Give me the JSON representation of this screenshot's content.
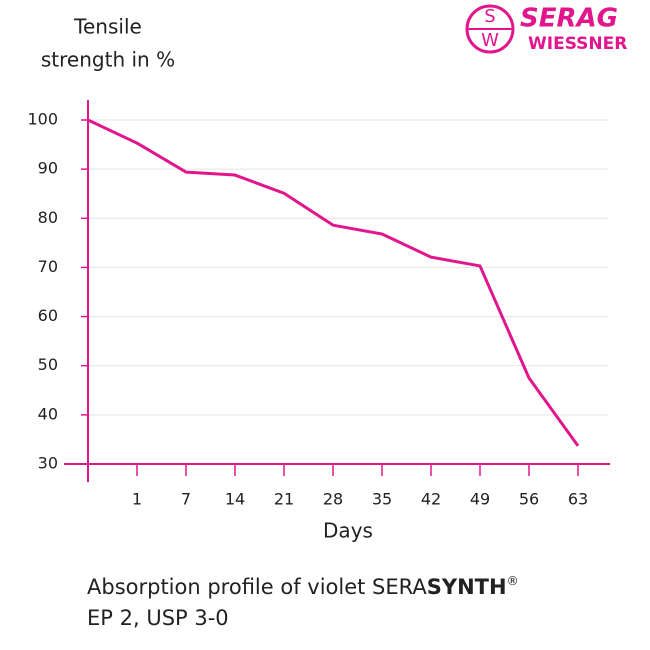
{
  "chart_data": {
    "type": "line",
    "y_label": [
      "Tensile",
      "strength in %"
    ],
    "x_label": "Days",
    "categories": [
      null,
      "1",
      "7",
      "14",
      "21",
      "28",
      "35",
      "42",
      "49",
      "56",
      "63"
    ],
    "series": [
      {
        "color": "#e2168c",
        "values": [
          100,
          95.3,
          89.4,
          88.8,
          85.1,
          78.6,
          76.8,
          72.1,
          70.3,
          47.5,
          33.7
        ]
      }
    ],
    "ylim": [
      30,
      100
    ],
    "yticks": [
      30,
      40,
      50,
      60,
      70,
      80,
      90,
      100
    ],
    "grid": true
  },
  "caption": {
    "line1": [
      "Absorption profile of violet SERA",
      "SYNTH",
      "®"
    ],
    "line2": "EP 2, USP 3-0"
  },
  "logo": {
    "letters": [
      "S",
      "W"
    ],
    "name": "SERAG",
    "subname": "WIESSNER"
  }
}
